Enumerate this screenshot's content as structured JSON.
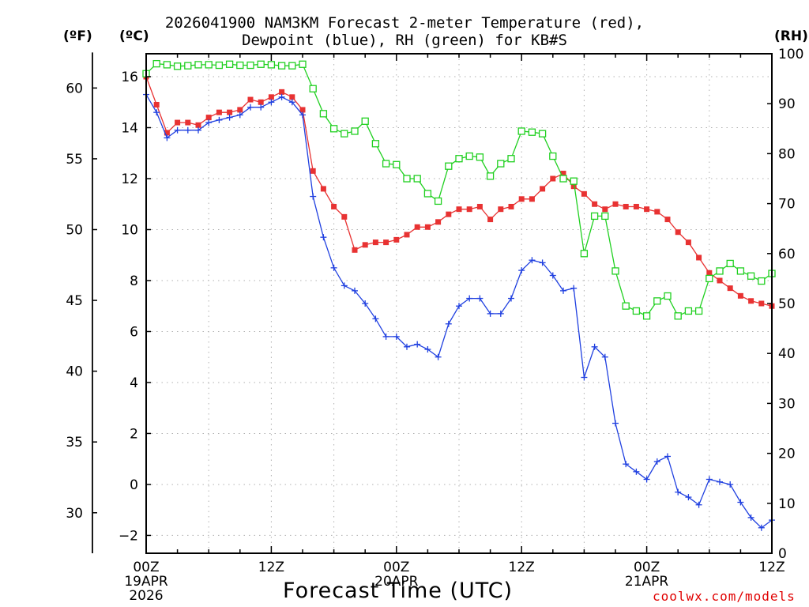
{
  "title": {
    "line1": "2026041900 NAM3KM Forecast 2-meter Temperature (red),",
    "line2": "Dewpoint (blue), RH (green) for KB#S"
  },
  "units": {
    "fahrenheit": "(ºF)",
    "celsius": "(ºC)",
    "rh": "(RH)"
  },
  "xlabel": "Forecast Time (UTC)",
  "credit": "coolwx.com/models",
  "colors": {
    "temperature": "#e83232",
    "dewpoint": "#2040e0",
    "rh": "#20d020",
    "grid": "#b0b0b0"
  },
  "chart_data": {
    "type": "line",
    "title": "2026041900 NAM3KM Forecast 2-meter Temperature (red), Dewpoint (blue), RH (green) for KB#S",
    "xlabel": "Forecast Time (UTC)",
    "x_range_hours": [
      0,
      60
    ],
    "x_ticks": [
      {
        "hour": 0,
        "lines": [
          "00Z",
          "19APR",
          "2026"
        ]
      },
      {
        "hour": 12,
        "lines": [
          "12Z"
        ]
      },
      {
        "hour": 24,
        "lines": [
          "00Z",
          "20APR"
        ]
      },
      {
        "hour": 36,
        "lines": [
          "12Z"
        ]
      },
      {
        "hour": 48,
        "lines": [
          "00Z",
          "21APR"
        ]
      },
      {
        "hour": 60,
        "lines": [
          "12Z"
        ]
      }
    ],
    "y_celsius": {
      "label": "(ºC)",
      "ylim": [
        -2.7,
        16.9
      ],
      "ticks": [
        -2,
        0,
        2,
        4,
        6,
        8,
        10,
        12,
        14,
        16
      ]
    },
    "y_fahrenheit": {
      "label": "(ºF)",
      "ticks": [
        30,
        35,
        40,
        45,
        50,
        55,
        60
      ]
    },
    "y_rh": {
      "label": "(RH)",
      "ylim": [
        0,
        100
      ],
      "ticks": [
        0,
        10,
        20,
        30,
        40,
        50,
        60,
        70,
        80,
        90,
        100
      ]
    },
    "grid": true,
    "series": [
      {
        "name": "Temperature (°C)",
        "axis": "celsius",
        "marker": "filled-square",
        "x": [
          0,
          1,
          2,
          3,
          4,
          5,
          6,
          7,
          8,
          9,
          10,
          11,
          12,
          13,
          14,
          15,
          16,
          17,
          18,
          19,
          20,
          21,
          22,
          23,
          24,
          25,
          26,
          27,
          28,
          29,
          30,
          31,
          32,
          33,
          34,
          35,
          36,
          37,
          38,
          39,
          40,
          41,
          42,
          43,
          44,
          45,
          46,
          47,
          48,
          49,
          50,
          51,
          52,
          53,
          54,
          55,
          56,
          57,
          58,
          59,
          60
        ],
        "values": [
          16.0,
          14.9,
          13.8,
          14.2,
          14.2,
          14.1,
          14.4,
          14.6,
          14.6,
          14.7,
          15.1,
          15.0,
          15.2,
          15.4,
          15.2,
          14.7,
          12.3,
          11.6,
          10.9,
          10.5,
          9.2,
          9.4,
          9.5,
          9.5,
          9.6,
          9.8,
          10.1,
          10.1,
          10.3,
          10.6,
          10.8,
          10.8,
          10.9,
          10.4,
          10.8,
          10.9,
          11.2,
          11.2,
          11.6,
          12.0,
          12.2,
          11.7,
          11.4,
          11.0,
          10.8,
          11.0,
          10.9,
          10.9,
          10.8,
          10.7,
          10.4,
          9.9,
          9.5,
          8.9,
          8.3,
          8.0,
          7.7,
          7.4,
          7.2,
          7.1,
          7.0
        ]
      },
      {
        "name": "Dewpoint (°C)",
        "axis": "celsius",
        "marker": "plus",
        "x": [
          0,
          1,
          2,
          3,
          4,
          5,
          6,
          7,
          8,
          9,
          10,
          11,
          12,
          13,
          14,
          15,
          16,
          17,
          18,
          19,
          20,
          21,
          22,
          23,
          24,
          25,
          26,
          27,
          28,
          29,
          30,
          31,
          32,
          33,
          34,
          35,
          36,
          37,
          38,
          39,
          40,
          41,
          42,
          43,
          44,
          45,
          46,
          47,
          48,
          49,
          50,
          51,
          52,
          53,
          54,
          55,
          56,
          57,
          58,
          59,
          60
        ],
        "values": [
          15.3,
          14.6,
          13.6,
          13.9,
          13.9,
          13.9,
          14.2,
          14.3,
          14.4,
          14.5,
          14.8,
          14.8,
          15.0,
          15.2,
          15.0,
          14.5,
          11.3,
          9.7,
          8.5,
          7.8,
          7.6,
          7.1,
          6.5,
          5.8,
          5.8,
          5.4,
          5.5,
          5.3,
          5.0,
          6.3,
          7.0,
          7.3,
          7.3,
          6.7,
          6.7,
          7.3,
          8.4,
          8.8,
          8.7,
          8.2,
          7.6,
          7.7,
          4.2,
          5.4,
          5.0,
          2.4,
          0.8,
          0.5,
          0.2,
          0.9,
          1.1,
          -0.3,
          -0.5,
          -0.8,
          0.2,
          0.1,
          0.0,
          -0.7,
          -1.3,
          -1.7,
          -1.4
        ]
      },
      {
        "name": "RH (%)",
        "axis": "rh",
        "marker": "open-square",
        "x": [
          0,
          1,
          2,
          3,
          4,
          5,
          6,
          7,
          8,
          9,
          10,
          11,
          12,
          13,
          14,
          15,
          16,
          17,
          18,
          19,
          20,
          21,
          22,
          23,
          24,
          25,
          26,
          27,
          28,
          29,
          30,
          31,
          32,
          33,
          34,
          35,
          36,
          37,
          38,
          39,
          40,
          41,
          42,
          43,
          44,
          45,
          46,
          47,
          48,
          49,
          50,
          51,
          52,
          53,
          54,
          55,
          56,
          57,
          58,
          59,
          60
        ],
        "values": [
          96,
          98,
          97.8,
          97.5,
          97.6,
          97.8,
          97.8,
          97.7,
          97.9,
          97.7,
          97.7,
          97.9,
          97.8,
          97.6,
          97.6,
          97.9,
          93,
          88,
          85,
          84,
          84.5,
          86.5,
          82,
          78,
          77.8,
          75,
          75,
          72,
          70.5,
          77.5,
          79,
          79.5,
          79.3,
          75.5,
          78,
          79,
          84.5,
          84.3,
          84,
          79.5,
          75,
          74.5,
          60,
          67.5,
          67.5,
          56.5,
          49.5,
          48.5,
          47.5,
          50.5,
          51.5,
          47.5,
          48.5,
          48.5,
          55,
          56.5,
          58,
          56.5,
          55.5,
          54.5,
          56
        ]
      }
    ]
  }
}
